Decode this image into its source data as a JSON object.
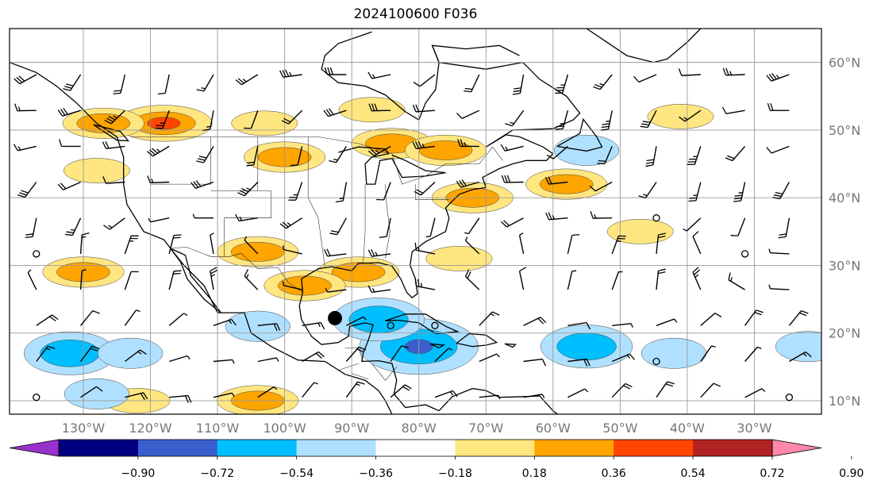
{
  "map": {
    "title": "2024100600 F036",
    "lat_labels": [
      {
        "lat": 60,
        "text": "60°N"
      },
      {
        "lat": 50,
        "text": "50°N"
      },
      {
        "lat": 40,
        "text": "40°N"
      },
      {
        "lat": 30,
        "text": "30°N"
      },
      {
        "lat": 20,
        "text": "20°N"
      },
      {
        "lat": 10,
        "text": "10°N"
      }
    ],
    "lon_labels": [
      {
        "lon": -130,
        "text": "130°W"
      },
      {
        "lon": -120,
        "text": "120°W"
      },
      {
        "lon": -110,
        "text": "110°W"
      },
      {
        "lon": -100,
        "text": "100°W"
      },
      {
        "lon": -90,
        "text": "90°W"
      },
      {
        "lon": -80,
        "text": "80°W"
      },
      {
        "lon": -70,
        "text": "70°W"
      },
      {
        "lon": -60,
        "text": "60°W"
      },
      {
        "lon": -50,
        "text": "50°W"
      },
      {
        "lon": -40,
        "text": "40°W"
      },
      {
        "lon": -30,
        "text": "30°W"
      }
    ],
    "extent": {
      "lon_min": -141,
      "lon_max": -20,
      "lat_min": 8,
      "lat_max": 65
    },
    "colors": {
      "neg": [
        "#9932cc",
        "#000080",
        "#3a5fcd",
        "#00bfff",
        "#b0e0ff"
      ],
      "zero": "#ffffff",
      "pos": [
        "#ffe680",
        "#ffa500",
        "#ff4500",
        "#b22222",
        "#ff88aa"
      ]
    },
    "colorbar": {
      "ticks": [
        "−0.90",
        "−0.72",
        "−0.54",
        "−0.36",
        "−0.18",
        "0.18",
        "0.36",
        "0.54",
        "0.72",
        "0.90"
      ],
      "bins": [
        {
          "color": "#9932cc"
        },
        {
          "color": "#000080"
        },
        {
          "color": "#3a5fcd"
        },
        {
          "color": "#00bfff"
        },
        {
          "color": "#b0e0ff"
        },
        {
          "color": "#ffffff"
        },
        {
          "color": "#ffe680"
        },
        {
          "color": "#ffa500"
        },
        {
          "color": "#ff4500"
        },
        {
          "color": "#b22222"
        },
        {
          "color": "#ff88aa"
        }
      ]
    },
    "positive_anomalies": [
      {
        "lon": -118,
        "lat": 51,
        "level": 2
      },
      {
        "lon": -127,
        "lat": 51,
        "level": 1
      },
      {
        "lon": -84,
        "lat": 48,
        "level": 1
      },
      {
        "lon": -103,
        "lat": 51,
        "level": 0
      },
      {
        "lon": -87,
        "lat": 53,
        "level": 0
      },
      {
        "lon": -72,
        "lat": 40,
        "level": 1
      },
      {
        "lon": -89,
        "lat": 29,
        "level": 1
      },
      {
        "lon": -104,
        "lat": 32,
        "level": 1
      },
      {
        "lon": -97,
        "lat": 27,
        "level": 1
      },
      {
        "lon": -74,
        "lat": 31,
        "level": 0
      },
      {
        "lon": -58,
        "lat": 42,
        "level": 1
      },
      {
        "lon": -47,
        "lat": 35,
        "level": 0
      },
      {
        "lon": -41,
        "lat": 52,
        "level": 0
      },
      {
        "lon": -104,
        "lat": 10,
        "level": 1
      },
      {
        "lon": -122,
        "lat": 10,
        "level": 0
      },
      {
        "lon": -100,
        "lat": 46,
        "level": 1
      },
      {
        "lon": -76,
        "lat": 47,
        "level": 1
      },
      {
        "lon": -128,
        "lat": 44,
        "level": 0
      },
      {
        "lon": -130,
        "lat": 29,
        "level": 1
      }
    ],
    "negative_anomalies": [
      {
        "lon": -80,
        "lat": 18,
        "level": 2
      },
      {
        "lon": -55,
        "lat": 18,
        "level": 1
      },
      {
        "lon": -86,
        "lat": 22,
        "level": 1
      },
      {
        "lon": -104,
        "lat": 21,
        "level": 0
      },
      {
        "lon": -132,
        "lat": 17,
        "level": 1
      },
      {
        "lon": -42,
        "lat": 17,
        "level": 0
      },
      {
        "lon": -55,
        "lat": 47,
        "level": 0
      },
      {
        "lon": -22,
        "lat": 18,
        "level": 0
      },
      {
        "lon": -128,
        "lat": 11,
        "level": 0
      },
      {
        "lon": -123,
        "lat": 17,
        "level": 0
      }
    ]
  }
}
